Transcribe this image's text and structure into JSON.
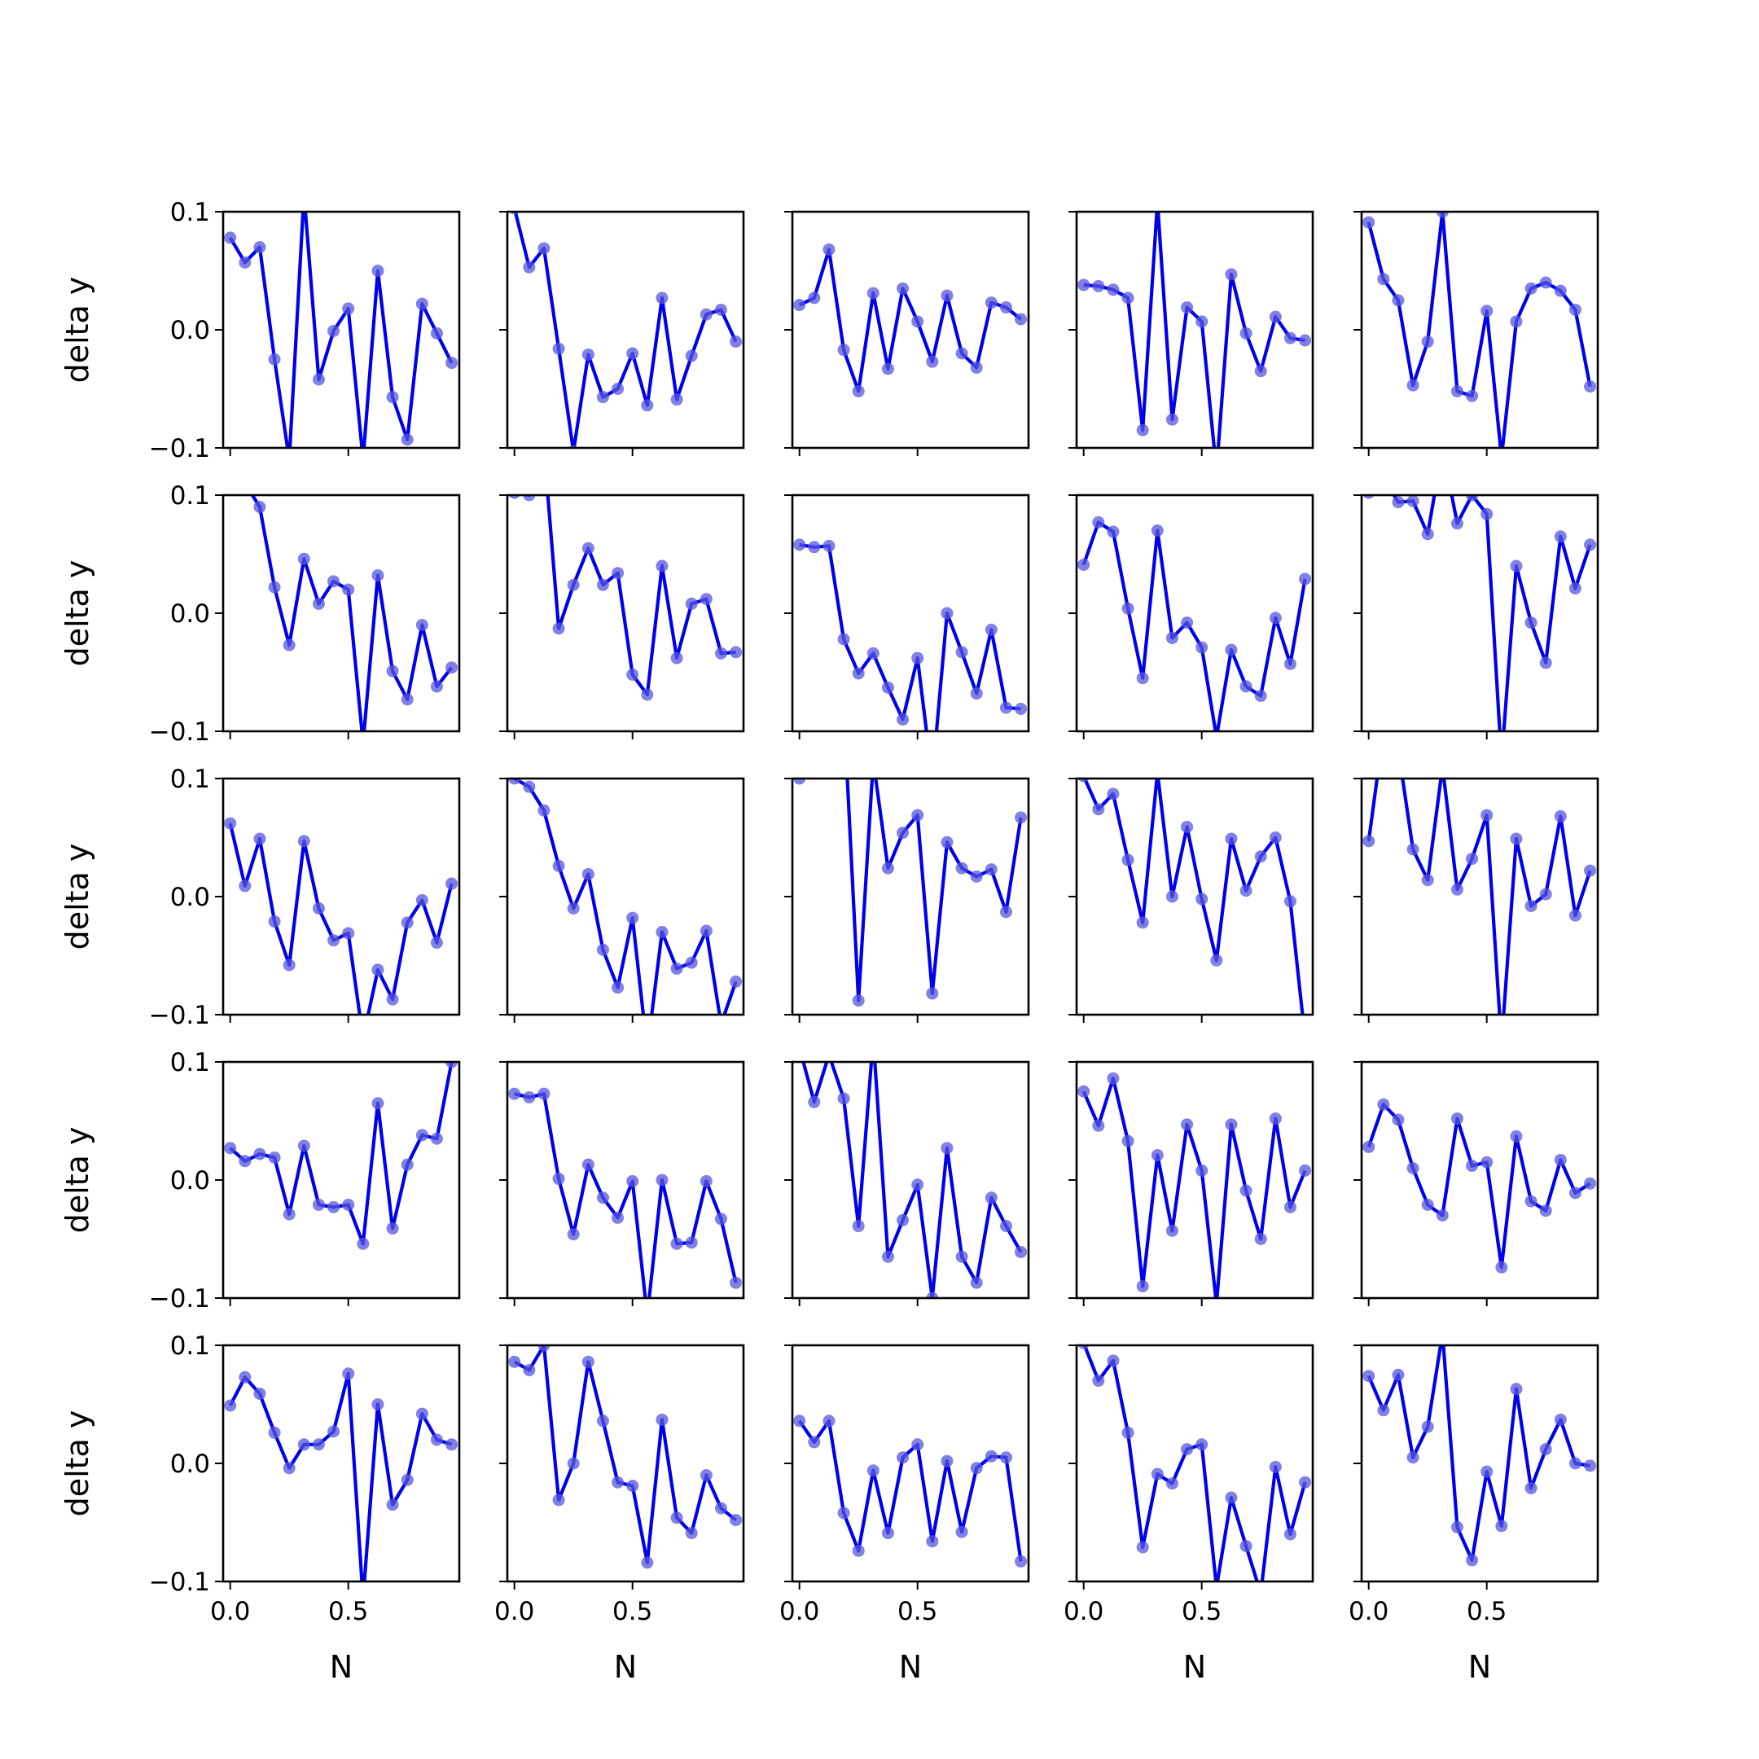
{
  "chart_data": {
    "type": "line",
    "layout": "5x5 small multiples, shared axes",
    "xlabel": "N",
    "ylabel": "delta y",
    "xlim": [
      -0.03,
      0.97
    ],
    "ylim": [
      -0.1,
      0.1
    ],
    "x_ticks": [
      0.0,
      0.5
    ],
    "x_tick_labels": [
      "0.0",
      "0.5"
    ],
    "y_ticks": [
      -0.1,
      0.0,
      0.1
    ],
    "y_tick_labels": [
      "−0.1",
      "0.0",
      "0.1"
    ],
    "x": [
      0.0,
      0.0625,
      0.125,
      0.1875,
      0.25,
      0.3125,
      0.375,
      0.4375,
      0.5,
      0.5625,
      0.625,
      0.6875,
      0.75,
      0.8125,
      0.875,
      0.9375
    ],
    "line_color": "#0000ee",
    "marker_color": "#5555dd",
    "grid": false,
    "panels": [
      {
        "values": [
          0.078,
          0.057,
          0.07,
          -0.025,
          -0.11,
          0.115,
          -0.042,
          -0.001,
          0.018,
          -0.11,
          0.05,
          -0.057,
          -0.093,
          0.022,
          -0.003,
          -0.028
        ]
      },
      {
        "values": [
          0.103,
          0.053,
          0.069,
          -0.016,
          -0.103,
          -0.021,
          -0.057,
          -0.05,
          -0.02,
          -0.064,
          0.027,
          -0.059,
          -0.022,
          0.013,
          0.017,
          -0.01
        ]
      },
      {
        "values": [
          0.021,
          0.027,
          0.068,
          -0.017,
          -0.052,
          0.031,
          -0.033,
          0.035,
          0.007,
          -0.027,
          0.029,
          -0.02,
          -0.032,
          0.023,
          0.019,
          0.009
        ]
      },
      {
        "values": [
          0.038,
          0.037,
          0.034,
          0.027,
          -0.085,
          0.108,
          -0.076,
          0.019,
          0.007,
          -0.12,
          0.047,
          -0.003,
          -0.035,
          0.011,
          -0.007,
          -0.009
        ]
      },
      {
        "values": [
          0.091,
          0.043,
          0.025,
          -0.047,
          -0.01,
          0.1,
          -0.052,
          -0.056,
          0.016,
          -0.108,
          0.007,
          0.035,
          0.04,
          0.033,
          0.017,
          -0.048
        ]
      },
      {
        "values": [
          0.14,
          0.11,
          0.09,
          0.022,
          -0.027,
          0.046,
          0.008,
          0.027,
          0.02,
          -0.11,
          0.032,
          -0.049,
          -0.073,
          -0.01,
          -0.062,
          -0.046
        ]
      },
      {
        "values": [
          0.102,
          0.1,
          0.14,
          -0.013,
          0.024,
          0.055,
          0.024,
          0.034,
          -0.052,
          -0.069,
          0.04,
          -0.038,
          0.008,
          0.012,
          -0.034,
          -0.033
        ]
      },
      {
        "values": [
          0.058,
          0.056,
          0.057,
          -0.022,
          -0.051,
          -0.034,
          -0.063,
          -0.09,
          -0.038,
          -0.14,
          0.0,
          -0.033,
          -0.068,
          -0.014,
          -0.08,
          -0.081
        ]
      },
      {
        "values": [
          0.041,
          0.077,
          0.069,
          0.004,
          -0.055,
          0.07,
          -0.021,
          -0.008,
          -0.029,
          -0.105,
          -0.031,
          -0.062,
          -0.07,
          -0.004,
          -0.043,
          0.029
        ]
      },
      {
        "values": [
          0.102,
          0.115,
          0.094,
          0.095,
          0.067,
          0.14,
          0.076,
          0.1,
          0.084,
          -0.125,
          0.04,
          -0.008,
          -0.042,
          0.065,
          0.021,
          0.058
        ]
      },
      {
        "values": [
          0.062,
          0.009,
          0.049,
          -0.021,
          -0.058,
          0.047,
          -0.01,
          -0.037,
          -0.031,
          -0.12,
          -0.062,
          -0.087,
          -0.022,
          -0.003,
          -0.039,
          0.011
        ]
      },
      {
        "values": [
          0.1,
          0.093,
          0.073,
          0.026,
          -0.01,
          0.019,
          -0.045,
          -0.077,
          -0.018,
          -0.13,
          -0.03,
          -0.061,
          -0.056,
          -0.029,
          -0.108,
          -0.072
        ]
      },
      {
        "values": [
          0.1,
          0.14,
          0.12,
          0.16,
          -0.088,
          0.115,
          0.024,
          0.054,
          0.069,
          -0.082,
          0.046,
          0.024,
          0.017,
          0.023,
          -0.013,
          0.067
        ]
      },
      {
        "values": [
          0.102,
          0.074,
          0.087,
          0.031,
          -0.022,
          0.105,
          0.0,
          0.059,
          -0.002,
          -0.054,
          0.049,
          0.005,
          0.034,
          0.05,
          -0.004,
          -0.12
        ]
      },
      {
        "values": [
          0.047,
          0.14,
          0.125,
          0.04,
          0.014,
          0.11,
          0.006,
          0.032,
          0.069,
          -0.125,
          0.049,
          -0.008,
          0.002,
          0.068,
          -0.016,
          0.022
        ]
      },
      {
        "values": [
          0.027,
          0.016,
          0.022,
          0.019,
          -0.029,
          0.029,
          -0.021,
          -0.023,
          -0.021,
          -0.054,
          0.065,
          -0.041,
          0.013,
          0.038,
          0.035,
          0.1
        ]
      },
      {
        "values": [
          0.073,
          0.07,
          0.073,
          0.001,
          -0.046,
          0.013,
          -0.015,
          -0.032,
          -0.001,
          -0.115,
          0.0,
          -0.054,
          -0.053,
          -0.001,
          -0.033,
          -0.087
        ]
      },
      {
        "values": [
          0.112,
          0.066,
          0.106,
          0.069,
          -0.039,
          0.12,
          -0.065,
          -0.034,
          -0.004,
          -0.1,
          0.027,
          -0.065,
          -0.087,
          -0.015,
          -0.039,
          -0.061
        ]
      },
      {
        "values": [
          0.075,
          0.046,
          0.086,
          0.033,
          -0.09,
          0.021,
          -0.043,
          0.047,
          0.008,
          -0.105,
          0.047,
          -0.009,
          -0.05,
          0.052,
          -0.023,
          0.008
        ]
      },
      {
        "values": [
          0.028,
          0.064,
          0.051,
          0.01,
          -0.021,
          -0.03,
          0.052,
          0.012,
          0.015,
          -0.074,
          0.037,
          -0.018,
          -0.026,
          0.017,
          -0.011,
          -0.003
        ]
      },
      {
        "values": [
          0.049,
          0.073,
          0.059,
          0.026,
          -0.004,
          0.016,
          0.016,
          0.027,
          0.076,
          -0.115,
          0.05,
          -0.035,
          -0.014,
          0.042,
          0.02,
          0.016
        ]
      },
      {
        "values": [
          0.086,
          0.079,
          0.1,
          -0.031,
          0.0,
          0.086,
          0.036,
          -0.016,
          -0.019,
          -0.084,
          0.037,
          -0.046,
          -0.059,
          -0.01,
          -0.038,
          -0.048
        ]
      },
      {
        "values": [
          0.036,
          0.018,
          0.036,
          -0.042,
          -0.074,
          -0.006,
          -0.059,
          0.005,
          0.016,
          -0.066,
          0.002,
          -0.058,
          -0.004,
          0.006,
          0.005,
          -0.083
        ]
      },
      {
        "values": [
          0.102,
          0.07,
          0.087,
          0.026,
          -0.071,
          -0.009,
          -0.017,
          0.012,
          0.016,
          -0.105,
          -0.029,
          -0.07,
          -0.11,
          -0.003,
          -0.06,
          -0.016
        ]
      },
      {
        "values": [
          0.074,
          0.045,
          0.075,
          0.005,
          0.031,
          0.11,
          -0.054,
          -0.082,
          -0.007,
          -0.053,
          0.063,
          -0.021,
          0.012,
          0.037,
          0.0,
          -0.002
        ]
      }
    ]
  }
}
